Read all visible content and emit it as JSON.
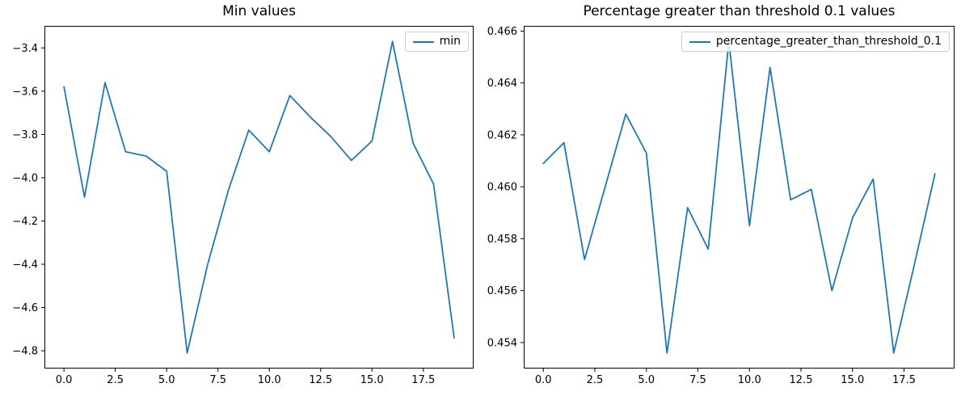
{
  "figure": {
    "background": "#ffffff",
    "line_color": "#1f77b4"
  },
  "chart_data": [
    {
      "type": "line",
      "title": "Min values",
      "x": [
        0,
        1,
        2,
        3,
        4,
        5,
        6,
        7,
        8,
        9,
        10,
        11,
        12,
        13,
        14,
        15,
        16,
        17,
        18,
        19
      ],
      "series": [
        {
          "name": "min",
          "color": "#1f77b4",
          "values": [
            -3.58,
            -4.09,
            -3.56,
            -3.88,
            -3.9,
            -3.97,
            -4.81,
            -4.4,
            -4.06,
            -3.78,
            -3.88,
            -3.62,
            -3.72,
            -3.81,
            -3.92,
            -3.83,
            -3.37,
            -3.84,
            -4.03,
            -4.74
          ]
        }
      ],
      "xlim": [
        -0.95,
        19.95
      ],
      "ylim": [
        -4.882,
        -3.298
      ],
      "xticks": {
        "values": [
          0,
          2.5,
          5,
          7.5,
          10,
          12.5,
          15,
          17.5
        ],
        "labels": [
          "0.0",
          "2.5",
          "5.0",
          "7.5",
          "10.0",
          "12.5",
          "15.0",
          "17.5"
        ]
      },
      "yticks": {
        "values": [
          -4.8,
          -4.6,
          -4.4,
          -4.2,
          -4.0,
          -3.8,
          -3.6,
          -3.4
        ],
        "labels": [
          "−4.8",
          "−4.6",
          "−4.4",
          "−4.2",
          "−4.0",
          "−3.8",
          "−3.6",
          "−3.4"
        ]
      },
      "legend": {
        "entries": [
          "min"
        ],
        "position": "upper right"
      },
      "grid": false
    },
    {
      "type": "line",
      "title": "Percentage greater than threshold 0.1 values",
      "x": [
        0,
        1,
        2,
        3,
        4,
        5,
        6,
        7,
        8,
        9,
        10,
        11,
        12,
        13,
        14,
        15,
        16,
        17,
        18,
        19
      ],
      "series": [
        {
          "name": "percentage_greater_than_threshold_0.1",
          "color": "#1f77b4",
          "values": [
            0.4609,
            0.4617,
            0.4572,
            0.46,
            0.4628,
            0.4613,
            0.4536,
            0.4592,
            0.4576,
            0.4656,
            0.4585,
            0.4646,
            0.4595,
            0.4599,
            0.456,
            0.4588,
            0.4603,
            0.4536,
            0.457,
            0.4605
          ]
        }
      ],
      "xlim": [
        -0.95,
        19.95
      ],
      "ylim": [
        0.453,
        0.4662
      ],
      "xticks": {
        "values": [
          0,
          2.5,
          5,
          7.5,
          10,
          12.5,
          15,
          17.5
        ],
        "labels": [
          "0.0",
          "2.5",
          "5.0",
          "7.5",
          "10.0",
          "12.5",
          "15.0",
          "17.5"
        ]
      },
      "yticks": {
        "values": [
          0.454,
          0.456,
          0.458,
          0.46,
          0.462,
          0.464,
          0.466
        ],
        "labels": [
          "0.454",
          "0.456",
          "0.458",
          "0.460",
          "0.462",
          "0.464",
          "0.466"
        ]
      },
      "legend": {
        "entries": [
          "percentage_greater_than_threshold_0.1"
        ],
        "position": "upper right"
      },
      "grid": false
    }
  ]
}
